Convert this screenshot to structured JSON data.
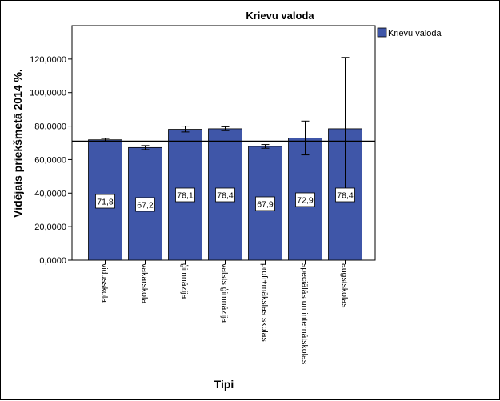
{
  "chart_data": {
    "type": "bar",
    "title": "Krievu valoda",
    "xlabel": "Tipi",
    "ylabel": "Vidējais priekšmetā 2014 %.",
    "categories": [
      "vidusskola",
      "vakarskola",
      "ģimnāzija",
      "valsts ģimnāzija",
      "profi+mākslas skolas",
      "speciālās un internātskolas",
      "augstskolas"
    ],
    "series": [
      {
        "name": "Krievu valoda",
        "color": "#3f56a8",
        "values": [
          71.8,
          67.2,
          78.1,
          78.4,
          67.9,
          72.9,
          78.4
        ],
        "data_labels": [
          "71,8",
          "67,2",
          "78,1",
          "78,4",
          "67,9",
          "72,9",
          "78,4"
        ],
        "error_low": [
          71.0,
          66.0,
          76.5,
          77.3,
          66.8,
          62.8,
          35.5
        ],
        "error_high": [
          72.6,
          68.4,
          80.0,
          79.6,
          69.0,
          83.0,
          121.0
        ]
      }
    ],
    "reference_line": 71,
    "ylim": [
      0,
      140
    ],
    "yticks": [
      0,
      20,
      40,
      60,
      80,
      100,
      120
    ],
    "ytick_labels": [
      "0,0000",
      "20,0000",
      "40,0000",
      "60,0000",
      "80,0000",
      "100,0000",
      "120,0000"
    ],
    "legend": {
      "position": "top-right",
      "entries": [
        "Krievu valoda"
      ]
    },
    "grid": false
  }
}
